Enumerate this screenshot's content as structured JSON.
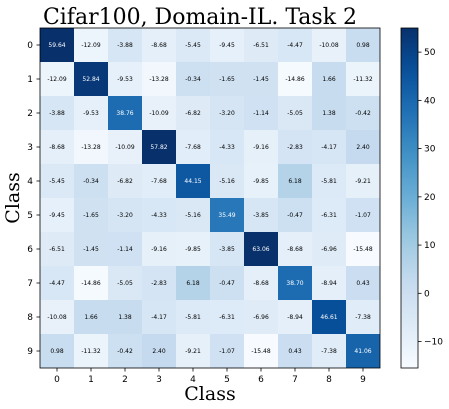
{
  "chart_data": {
    "type": "heatmap",
    "title": "Cifar100, Domain-IL. Task 2",
    "xlabel": "Class",
    "ylabel": "Class",
    "x_categories": [
      "0",
      "1",
      "2",
      "3",
      "4",
      "5",
      "6",
      "7",
      "8",
      "9"
    ],
    "y_categories": [
      "0",
      "1",
      "2",
      "3",
      "4",
      "5",
      "6",
      "7",
      "8",
      "9"
    ],
    "values": [
      [
        59.64,
        -12.09,
        -3.88,
        -8.68,
        -5.45,
        -9.45,
        -6.51,
        -4.47,
        -10.08,
        0.98
      ],
      [
        -12.09,
        52.84,
        -9.53,
        -13.28,
        -0.34,
        -1.65,
        -1.45,
        -14.86,
        1.66,
        -11.32
      ],
      [
        -3.88,
        -9.53,
        38.76,
        -10.09,
        -6.82,
        -3.2,
        -1.14,
        -5.05,
        1.38,
        -0.42
      ],
      [
        -8.68,
        -13.28,
        -10.09,
        57.82,
        -7.68,
        -4.33,
        -9.16,
        -2.83,
        -4.17,
        2.4
      ],
      [
        -5.45,
        -0.34,
        -6.82,
        -7.68,
        44.15,
        -5.16,
        -9.85,
        6.18,
        -5.81,
        -9.21
      ],
      [
        -9.45,
        -1.65,
        -3.2,
        -4.33,
        -5.16,
        35.49,
        -3.85,
        -0.47,
        -6.31,
        -1.07
      ],
      [
        -6.51,
        -1.45,
        -1.14,
        -9.16,
        -9.85,
        -3.85,
        63.06,
        -8.68,
        -6.96,
        -15.48
      ],
      [
        -4.47,
        -14.86,
        -5.05,
        -2.83,
        6.18,
        -0.47,
        -8.68,
        38.7,
        -8.94,
        0.43
      ],
      [
        -10.08,
        1.66,
        1.38,
        -4.17,
        -5.81,
        -6.31,
        -6.96,
        -8.94,
        46.61,
        -7.38
      ],
      [
        0.98,
        -11.32,
        -0.42,
        2.4,
        -9.21,
        -1.07,
        -15.48,
        0.43,
        -7.38,
        41.06
      ]
    ],
    "labels": [
      [
        "59.64",
        "-12.09",
        "-3.88",
        "-8.68",
        "-5.45",
        "-9.45",
        "-6.51",
        "-4.47",
        "-10.08",
        "0.98"
      ],
      [
        "-12.09",
        "52.84",
        "-9.53",
        "-13.28",
        "-0.34",
        "-1.65",
        "-1.45",
        "-14.86",
        "1.66",
        "-11.32"
      ],
      [
        "-3.88",
        "-9.53",
        "38.76",
        "-10.09",
        "-6.82",
        "-3.20",
        "-1.14",
        "-5.05",
        "1.38",
        "-0.42"
      ],
      [
        "-8.68",
        "-13.28",
        "-10.09",
        "57.82",
        "-7.68",
        "-4.33",
        "-9.16",
        "-2.83",
        "-4.17",
        "2.40"
      ],
      [
        "-5.45",
        "-0.34",
        "-6.82",
        "-7.68",
        "44.15",
        "-5.16",
        "-9.85",
        "6.18",
        "-5.81",
        "-9.21"
      ],
      [
        "-9.45",
        "-1.65",
        "-3.20",
        "-4.33",
        "-5.16",
        "35.49",
        "-3.85",
        "-0.47",
        "-6.31",
        "-1.07"
      ],
      [
        "-6.51",
        "-1.45",
        "-1.14",
        "-9.16",
        "-9.85",
        "-3.85",
        "63.06",
        "-8.68",
        "-6.96",
        "-15.48"
      ],
      [
        "-4.47",
        "-14.86",
        "-5.05",
        "-2.83",
        "6.18",
        "-0.47",
        "-8.68",
        "38.70",
        "-8.94",
        "0.43"
      ],
      [
        "-10.08",
        "1.66",
        "1.38",
        "-4.17",
        "-5.81",
        "-6.31",
        "-6.96",
        "-8.94",
        "46.61",
        "-7.38"
      ],
      [
        "0.98",
        "-11.32",
        "-0.42",
        "2.40",
        "-9.21",
        "-1.07",
        "-15.48",
        "0.43",
        "-7.38",
        "41.06"
      ]
    ],
    "colormap": "Blues",
    "vmin": -15.48,
    "vmax": 55,
    "colorbar_ticks": [
      -10,
      0,
      10,
      20,
      30,
      40,
      50
    ],
    "colorbar_tick_labels": [
      "−10",
      "0",
      "10",
      "20",
      "30",
      "40",
      "50"
    ],
    "grid": false,
    "colorbar_position": "right"
  }
}
